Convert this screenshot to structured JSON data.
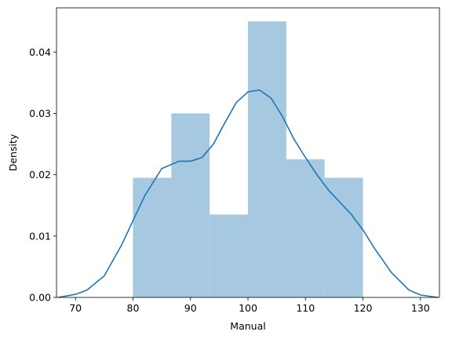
{
  "chart_data": {
    "type": "histogram",
    "xlabel": "Manual",
    "ylabel": "Density",
    "xlim": [
      66.7,
      133.3
    ],
    "ylim": [
      0,
      0.0472
    ],
    "xticks": [
      70,
      80,
      90,
      100,
      110,
      120,
      130
    ],
    "yticks": [
      0.0,
      0.01,
      0.02,
      0.03,
      0.04
    ],
    "ytick_labels": [
      "0.00",
      "0.01",
      "0.02",
      "0.03",
      "0.04"
    ],
    "bins": [
      {
        "x0": 80.0,
        "x1": 86.67,
        "density": 0.0195
      },
      {
        "x0": 86.67,
        "x1": 93.33,
        "density": 0.03
      },
      {
        "x0": 93.33,
        "x1": 100.0,
        "density": 0.0135
      },
      {
        "x0": 100.0,
        "x1": 106.67,
        "density": 0.045
      },
      {
        "x0": 106.67,
        "x1": 113.33,
        "density": 0.0225
      },
      {
        "x0": 113.33,
        "x1": 120.0,
        "density": 0.0195
      }
    ],
    "kde": {
      "x": [
        67,
        70,
        72,
        75,
        78,
        80,
        82,
        85,
        88,
        90,
        92,
        94,
        96,
        98,
        100,
        102,
        104,
        106,
        108,
        110,
        112,
        114,
        116,
        118,
        120,
        122,
        125,
        128,
        130,
        133
      ],
      "y": [
        0.0,
        0.0005,
        0.0012,
        0.0035,
        0.0085,
        0.0125,
        0.0165,
        0.021,
        0.0222,
        0.0222,
        0.0228,
        0.025,
        0.0285,
        0.0318,
        0.0335,
        0.0338,
        0.0325,
        0.0295,
        0.0258,
        0.0228,
        0.02,
        0.0175,
        0.0155,
        0.0135,
        0.011,
        0.008,
        0.004,
        0.0012,
        0.0004,
        0.0
      ]
    },
    "colors": {
      "bars": "#a6c8e0",
      "kde": "#1f77b4",
      "axes": "#000000"
    },
    "grid": false,
    "legend": "none"
  }
}
